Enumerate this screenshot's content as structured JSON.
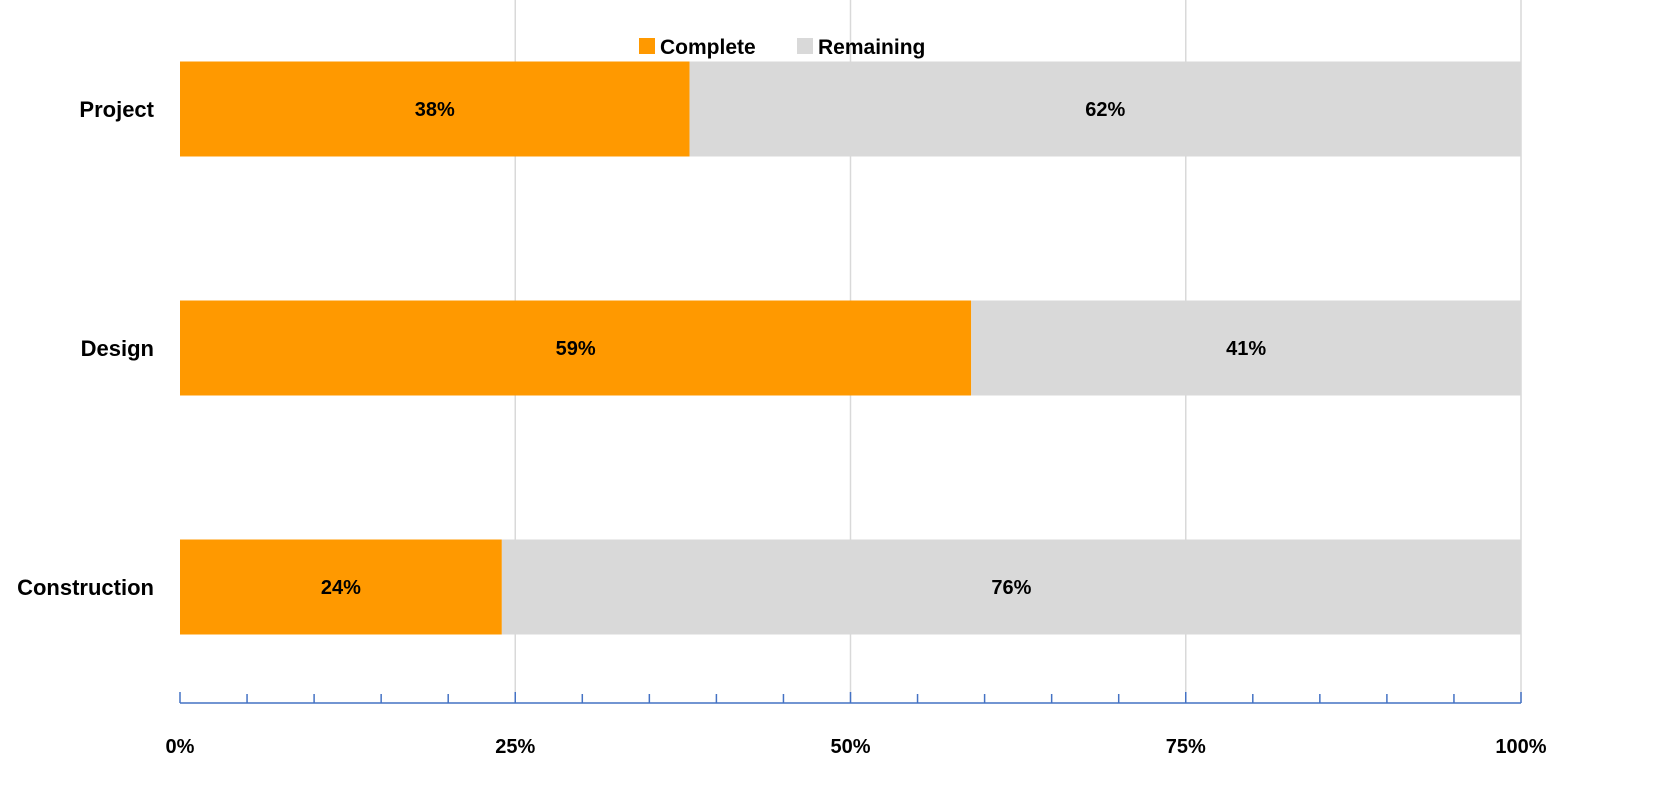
{
  "chart_data": {
    "type": "bar",
    "orientation": "horizontal",
    "stacked": true,
    "title": "",
    "xlabel": "",
    "ylabel": "",
    "categories": [
      "Project",
      "Design",
      "Construction"
    ],
    "series": [
      {
        "name": "Complete",
        "values": [
          38,
          59,
          24
        ],
        "labels": [
          "38%",
          "59%",
          "24%"
        ],
        "color": "#FF9900"
      },
      {
        "name": "Remaining",
        "values": [
          62,
          41,
          76
        ],
        "labels": [
          "62%",
          "41%",
          "76%"
        ],
        "color": "#D9D9D9"
      }
    ],
    "xlim": [
      0,
      100
    ],
    "x_ticks": [
      0,
      25,
      50,
      75,
      100
    ],
    "x_tick_labels": [
      "0%",
      "25%",
      "50%",
      "75%",
      "100%"
    ],
    "grid": "vertical",
    "legend": "top-center",
    "colors": {
      "gridline": "#D9D9D9",
      "axis": "#4472C4"
    }
  }
}
